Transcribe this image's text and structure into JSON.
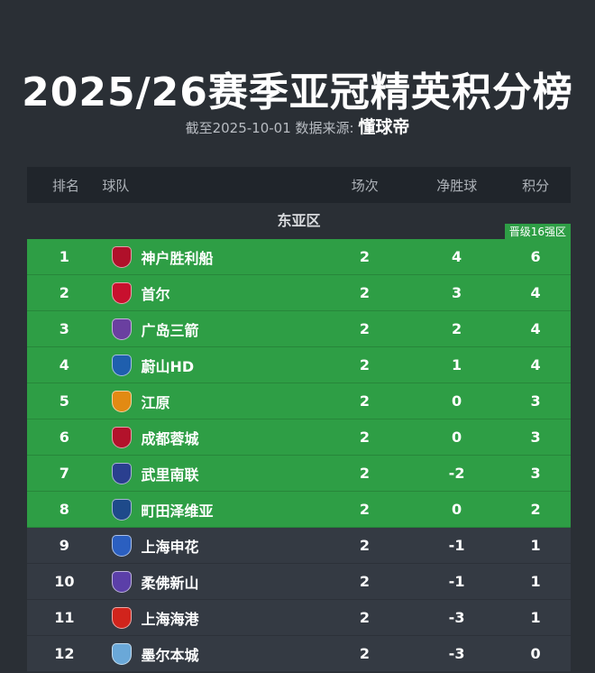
{
  "title": "2025/26赛季亚冠精英积分榜",
  "subtitle": {
    "prefix": "截至2025-10-01 数据来源:",
    "source": "懂球帝"
  },
  "columns": {
    "rank": "排名",
    "team": "球队",
    "played": "场次",
    "goal_diff": "净胜球",
    "points": "积分"
  },
  "region": "东亚区",
  "qualify_badge": "晋级16强区",
  "colors": {
    "qualified": "#2e9e45",
    "normal": "#343a43",
    "background": "#2a2f35"
  },
  "rows": [
    {
      "rank": "1",
      "team": "神户胜利船",
      "played": "2",
      "gd": "4",
      "pts": "6",
      "qualified": true,
      "logo_color": "#b0102a"
    },
    {
      "rank": "2",
      "team": "首尔",
      "played": "2",
      "gd": "3",
      "pts": "4",
      "qualified": true,
      "logo_color": "#c8102e"
    },
    {
      "rank": "3",
      "team": "广岛三箭",
      "played": "2",
      "gd": "2",
      "pts": "4",
      "qualified": true,
      "logo_color": "#6a3fa0"
    },
    {
      "rank": "4",
      "team": "蔚山HD",
      "played": "2",
      "gd": "1",
      "pts": "4",
      "qualified": true,
      "logo_color": "#1f5fae"
    },
    {
      "rank": "5",
      "team": "江原",
      "played": "2",
      "gd": "0",
      "pts": "3",
      "qualified": true,
      "logo_color": "#e28a13"
    },
    {
      "rank": "6",
      "team": "成都蓉城",
      "played": "2",
      "gd": "0",
      "pts": "3",
      "qualified": true,
      "logo_color": "#b3122b"
    },
    {
      "rank": "7",
      "team": "武里南联",
      "played": "2",
      "gd": "-2",
      "pts": "3",
      "qualified": true,
      "logo_color": "#2a3f8f"
    },
    {
      "rank": "8",
      "team": "町田泽维亚",
      "played": "2",
      "gd": "0",
      "pts": "2",
      "qualified": true,
      "logo_color": "#1e4a8a"
    },
    {
      "rank": "9",
      "team": "上海申花",
      "played": "2",
      "gd": "-1",
      "pts": "1",
      "qualified": false,
      "logo_color": "#2b5fc0"
    },
    {
      "rank": "10",
      "team": "柔佛新山",
      "played": "2",
      "gd": "-1",
      "pts": "1",
      "qualified": false,
      "logo_color": "#5b3fa8"
    },
    {
      "rank": "11",
      "team": "上海海港",
      "played": "2",
      "gd": "-3",
      "pts": "1",
      "qualified": false,
      "logo_color": "#d1241c"
    },
    {
      "rank": "12",
      "team": "墨尔本城",
      "played": "2",
      "gd": "-3",
      "pts": "0",
      "qualified": false,
      "logo_color": "#6aa8d8"
    }
  ]
}
